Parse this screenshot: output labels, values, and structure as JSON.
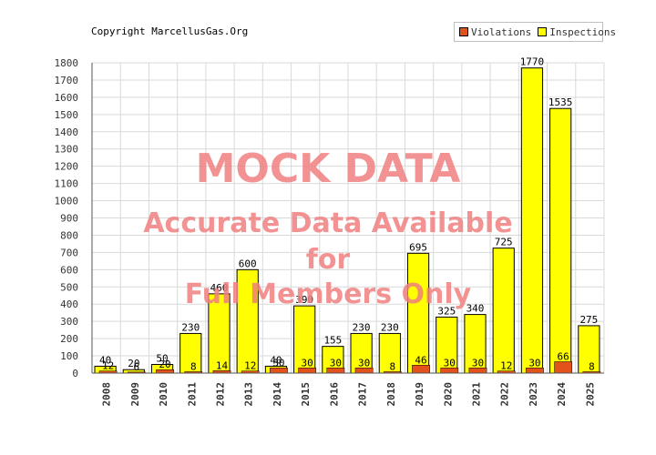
{
  "copyright": "Copyright MarcellusGas.Org",
  "watermark": {
    "title": "MOCK DATA",
    "line1": "Accurate Data Available",
    "line2": "for",
    "line3": "Full Members Only"
  },
  "colors": {
    "violations": "#e2521a",
    "inspections": "#ffff00",
    "grid": "#d9d9d9",
    "axis": "#555555"
  },
  "chart_data": {
    "type": "bar",
    "categories": [
      "2008",
      "2009",
      "2010",
      "2011",
      "2012",
      "2013",
      "2014",
      "2015",
      "2016",
      "2017",
      "2018",
      "2019",
      "2020",
      "2021",
      "2022",
      "2023",
      "2024",
      "2025"
    ],
    "series": [
      {
        "name": "Violations",
        "values": [
          12,
          6,
          20,
          8,
          14,
          12,
          30,
          30,
          30,
          30,
          8,
          46,
          30,
          30,
          12,
          30,
          66,
          8
        ]
      },
      {
        "name": "Inspections",
        "values": [
          40,
          20,
          50,
          230,
          460,
          600,
          40,
          390,
          155,
          230,
          230,
          695,
          325,
          340,
          725,
          1770,
          1535,
          275
        ]
      }
    ],
    "ylim": [
      0,
      1800
    ],
    "yticks": [
      0,
      100,
      200,
      300,
      400,
      500,
      600,
      700,
      800,
      900,
      1000,
      1100,
      1200,
      1300,
      1400,
      1500,
      1600,
      1700,
      1800
    ],
    "grid": true,
    "legend_position": "top-right"
  }
}
